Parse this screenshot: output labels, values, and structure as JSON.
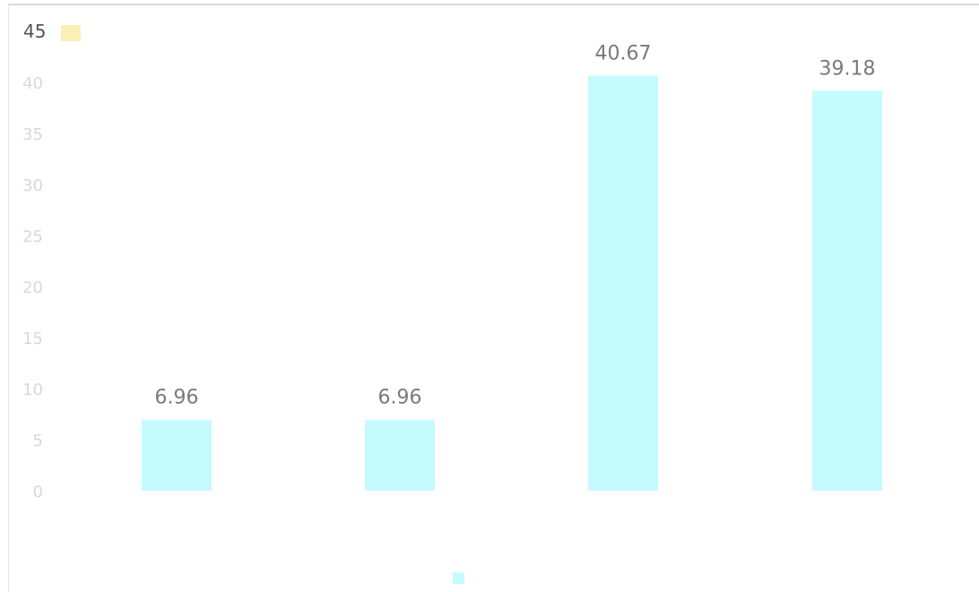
{
  "chart_data": {
    "type": "bar",
    "categories": [
      "",
      "",
      "",
      ""
    ],
    "values": [
      6.96,
      6.96,
      40.67,
      39.18
    ],
    "data_labels": [
      "6.96",
      "6.96",
      "40.67",
      "39.18"
    ],
    "y_ticks": [
      "0",
      "5",
      "10",
      "15",
      "20",
      "25",
      "30",
      "35",
      "40",
      "45"
    ],
    "ylim": [
      0,
      45
    ],
    "title": "",
    "xlabel": "",
    "ylabel": "",
    "grid": false,
    "legend_position": "bottom",
    "series": [
      {
        "values": [
          6.96,
          6.96,
          40.67,
          39.18
        ]
      }
    ],
    "colors": {
      "bar": "#c6fbfd",
      "tick_text": "#d8d8d8",
      "data_label": "#7a7a7a",
      "axis_top_label": "#555555",
      "marker": "#f7e27a"
    }
  }
}
